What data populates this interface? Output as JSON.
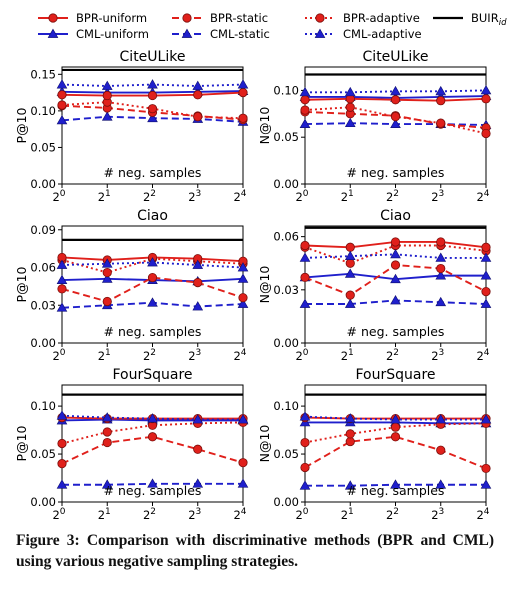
{
  "caption": "Figure 3: Comparison with discriminative methods (BPR and CML) using various negative sampling strategies.",
  "styles": {
    "BPR-uniform": {
      "color": "#e0201b",
      "dash": "",
      "marker": "circle"
    },
    "BPR-static": {
      "color": "#e0201b",
      "dash": "7,4",
      "marker": "circle"
    },
    "BPR-adaptive": {
      "color": "#e0201b",
      "dash": "2,3",
      "marker": "circle"
    },
    "CML-uniform": {
      "color": "#1f1fcc",
      "dash": "",
      "marker": "triangle"
    },
    "CML-static": {
      "color": "#1f1fcc",
      "dash": "7,4",
      "marker": "triangle"
    },
    "CML-adaptive": {
      "color": "#1f1fcc",
      "dash": "2,3",
      "marker": "triangle"
    },
    "BUIR": {
      "color": "#000000",
      "dash": "",
      "marker": "none"
    }
  },
  "legend": [
    {
      "key": "BPR-uniform",
      "label": "BPR-uniform"
    },
    {
      "key": "BPR-static",
      "label": "BPR-static"
    },
    {
      "key": "BPR-adaptive",
      "label": "BPR-adaptive"
    },
    {
      "key": "BUIR",
      "label": "BUIR",
      "sub": "id"
    },
    {
      "key": "CML-uniform",
      "label": "CML-uniform"
    },
    {
      "key": "CML-static",
      "label": "CML-static"
    },
    {
      "key": "CML-adaptive",
      "label": "CML-adaptive"
    }
  ],
  "chart_data": [
    {
      "type": "line",
      "title": "CiteULike",
      "ylabel": "P@10",
      "xlabel": "# neg. samples",
      "x": [
        "2^0",
        "2^1",
        "2^2",
        "2^3",
        "2^4"
      ],
      "ylim": [
        0,
        0.16
      ],
      "yticks": [
        "0.00",
        "0.05",
        "0.10",
        "0.15"
      ],
      "ytick_values": [
        0,
        0.05,
        0.1,
        0.15
      ],
      "series": [
        {
          "name": "BPR-uniform",
          "values": [
            0.122,
            0.121,
            0.121,
            0.122,
            0.125
          ]
        },
        {
          "name": "BPR-static",
          "values": [
            0.107,
            0.104,
            0.098,
            0.093,
            0.088
          ]
        },
        {
          "name": "BPR-adaptive",
          "values": [
            0.108,
            0.112,
            0.103,
            0.092,
            0.09
          ]
        },
        {
          "name": "CML-uniform",
          "values": [
            0.126,
            0.125,
            0.125,
            0.126,
            0.127
          ]
        },
        {
          "name": "CML-static",
          "values": [
            0.087,
            0.092,
            0.09,
            0.089,
            0.085
          ]
        },
        {
          "name": "CML-adaptive",
          "values": [
            0.136,
            0.134,
            0.136,
            0.134,
            0.136
          ]
        },
        {
          "name": "BUIR",
          "values": [
            0.156,
            0.156,
            0.156,
            0.156,
            0.156
          ]
        }
      ]
    },
    {
      "type": "line",
      "title": "CiteULike",
      "ylabel": "N@10",
      "xlabel": "# neg. samples",
      "x": [
        "2^0",
        "2^1",
        "2^2",
        "2^3",
        "2^4"
      ],
      "ylim": [
        0,
        0.125
      ],
      "yticks": [
        "0.00",
        "0.05",
        "0.10"
      ],
      "ytick_values": [
        0,
        0.05,
        0.1
      ],
      "series": [
        {
          "name": "BPR-uniform",
          "values": [
            0.09,
            0.091,
            0.09,
            0.089,
            0.091
          ]
        },
        {
          "name": "BPR-static",
          "values": [
            0.077,
            0.075,
            0.073,
            0.064,
            0.06
          ]
        },
        {
          "name": "BPR-adaptive",
          "values": [
            0.079,
            0.082,
            0.072,
            0.065,
            0.054
          ]
        },
        {
          "name": "CML-uniform",
          "values": [
            0.093,
            0.093,
            0.092,
            0.093,
            0.094
          ]
        },
        {
          "name": "CML-static",
          "values": [
            0.064,
            0.065,
            0.064,
            0.064,
            0.063
          ]
        },
        {
          "name": "CML-adaptive",
          "values": [
            0.098,
            0.098,
            0.099,
            0.099,
            0.1
          ]
        },
        {
          "name": "BUIR",
          "values": [
            0.117,
            0.117,
            0.117,
            0.117,
            0.117
          ]
        }
      ]
    },
    {
      "type": "line",
      "title": "Ciao",
      "ylabel": "P@10",
      "xlabel": "# neg. samples",
      "x": [
        "2^0",
        "2^1",
        "2^2",
        "2^3",
        "2^4"
      ],
      "ylim": [
        0,
        0.093
      ],
      "yticks": [
        "0.00",
        "0.03",
        "0.06",
        "0.09"
      ],
      "ytick_values": [
        0,
        0.03,
        0.06,
        0.09
      ],
      "series": [
        {
          "name": "BPR-uniform",
          "values": [
            0.068,
            0.066,
            0.068,
            0.067,
            0.065
          ]
        },
        {
          "name": "BPR-static",
          "values": [
            0.043,
            0.033,
            0.052,
            0.048,
            0.036
          ]
        },
        {
          "name": "BPR-adaptive",
          "values": [
            0.066,
            0.056,
            0.067,
            0.065,
            0.063
          ]
        },
        {
          "name": "CML-uniform",
          "values": [
            0.05,
            0.051,
            0.05,
            0.049,
            0.051
          ]
        },
        {
          "name": "CML-static",
          "values": [
            0.028,
            0.03,
            0.032,
            0.029,
            0.031
          ]
        },
        {
          "name": "CML-adaptive",
          "values": [
            0.062,
            0.063,
            0.064,
            0.062,
            0.06
          ]
        },
        {
          "name": "BUIR",
          "values": [
            0.082,
            0.082,
            0.082,
            0.082,
            0.082
          ]
        }
      ]
    },
    {
      "type": "line",
      "title": "Ciao",
      "ylabel": "N@10",
      "xlabel": "# neg. samples",
      "x": [
        "2^0",
        "2^1",
        "2^2",
        "2^3",
        "2^4"
      ],
      "ylim": [
        0,
        0.066
      ],
      "yticks": [
        "0.00",
        "0.03",
        "0.06"
      ],
      "ytick_values": [
        0,
        0.03,
        0.06
      ],
      "series": [
        {
          "name": "BPR-uniform",
          "values": [
            0.055,
            0.054,
            0.057,
            0.057,
            0.054
          ]
        },
        {
          "name": "BPR-static",
          "values": [
            0.037,
            0.027,
            0.044,
            0.042,
            0.029
          ]
        },
        {
          "name": "BPR-adaptive",
          "values": [
            0.054,
            0.045,
            0.055,
            0.055,
            0.052
          ]
        },
        {
          "name": "CML-uniform",
          "values": [
            0.037,
            0.039,
            0.036,
            0.038,
            0.038
          ]
        },
        {
          "name": "CML-static",
          "values": [
            0.022,
            0.022,
            0.024,
            0.023,
            0.022
          ]
        },
        {
          "name": "CML-adaptive",
          "values": [
            0.048,
            0.049,
            0.05,
            0.048,
            0.048
          ]
        },
        {
          "name": "BUIR",
          "values": [
            0.065,
            0.065,
            0.065,
            0.065,
            0.065
          ]
        }
      ]
    },
    {
      "type": "line",
      "title": "FourSquare",
      "ylabel": "P@10",
      "xlabel": "# neg. samples",
      "x": [
        "2^0",
        "2^1",
        "2^2",
        "2^3",
        "2^4"
      ],
      "ylim": [
        0,
        0.122
      ],
      "yticks": [
        "0.00",
        "0.05",
        "0.10"
      ],
      "ytick_values": [
        0,
        0.05,
        0.1
      ],
      "series": [
        {
          "name": "BPR-uniform",
          "values": [
            0.088,
            0.087,
            0.087,
            0.087,
            0.087
          ]
        },
        {
          "name": "BPR-static",
          "values": [
            0.04,
            0.062,
            0.068,
            0.055,
            0.041
          ]
        },
        {
          "name": "BPR-adaptive",
          "values": [
            0.061,
            0.073,
            0.08,
            0.082,
            0.083
          ]
        },
        {
          "name": "CML-uniform",
          "values": [
            0.085,
            0.086,
            0.085,
            0.085,
            0.085
          ]
        },
        {
          "name": "CML-static",
          "values": [
            0.018,
            0.018,
            0.019,
            0.019,
            0.019
          ]
        },
        {
          "name": "CML-adaptive",
          "values": [
            0.09,
            0.088,
            0.087,
            0.086,
            0.086
          ]
        },
        {
          "name": "BUIR",
          "values": [
            0.112,
            0.112,
            0.112,
            0.112,
            0.112
          ]
        }
      ]
    },
    {
      "type": "line",
      "title": "FourSquare",
      "ylabel": "N@10",
      "xlabel": "# neg. samples",
      "x": [
        "2^0",
        "2^1",
        "2^2",
        "2^3",
        "2^4"
      ],
      "ylim": [
        0,
        0.122
      ],
      "yticks": [
        "0.00",
        "0.05",
        "0.10"
      ],
      "ytick_values": [
        0,
        0.05,
        0.1
      ],
      "series": [
        {
          "name": "BPR-uniform",
          "values": [
            0.088,
            0.087,
            0.087,
            0.087,
            0.087
          ]
        },
        {
          "name": "BPR-static",
          "values": [
            0.036,
            0.063,
            0.068,
            0.054,
            0.035
          ]
        },
        {
          "name": "BPR-adaptive",
          "values": [
            0.062,
            0.071,
            0.078,
            0.081,
            0.082
          ]
        },
        {
          "name": "CML-uniform",
          "values": [
            0.083,
            0.083,
            0.083,
            0.082,
            0.082
          ]
        },
        {
          "name": "CML-static",
          "values": [
            0.017,
            0.017,
            0.018,
            0.018,
            0.018
          ]
        },
        {
          "name": "CML-adaptive",
          "values": [
            0.089,
            0.087,
            0.086,
            0.086,
            0.086
          ]
        },
        {
          "name": "BUIR",
          "values": [
            0.112,
            0.112,
            0.112,
            0.112,
            0.112
          ]
        }
      ]
    }
  ]
}
